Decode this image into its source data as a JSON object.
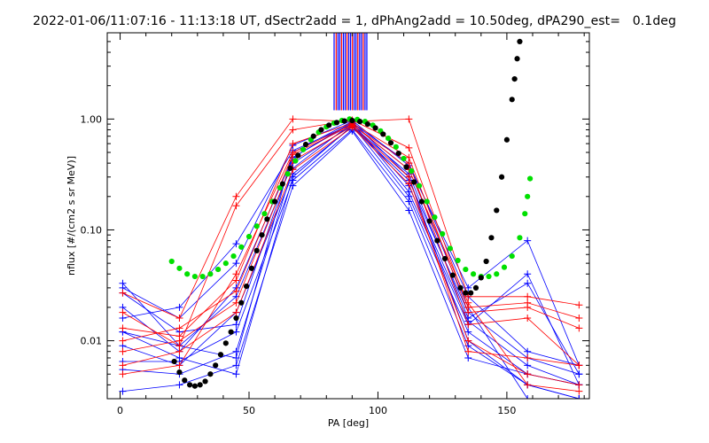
{
  "chart_data": {
    "type": "line",
    "title": "2022-01-06/11:07:16 - 11:13:18 UT, dSectr2add = 1, dPhAng2add = 10.50deg, dPA290_est=   0.1deg",
    "xlabel": "PA [deg]",
    "ylabel": "nflux [#/(cm2 s sr MeV)]",
    "xlim": [
      -5,
      182
    ],
    "ylim": [
      0.003,
      6.0
    ],
    "yscale": "log",
    "x_ticks": [
      {
        "value": 0,
        "label": "0"
      },
      {
        "value": 50,
        "label": "50"
      },
      {
        "value": 100,
        "label": "100"
      },
      {
        "value": 150,
        "label": "150"
      }
    ],
    "y_ticks": [
      {
        "value": 0.01,
        "label": "0.01"
      },
      {
        "value": 0.1,
        "label": "0.10"
      },
      {
        "value": 1.0,
        "label": "1.00"
      }
    ],
    "marker_pa": [
      1,
      23,
      45,
      67,
      90,
      112,
      135,
      158,
      178
    ],
    "series": [
      {
        "color": "#0000ff",
        "values": [
          0.033,
          0.009,
          0.007,
          0.5,
          0.95,
          0.3,
          0.01,
          0.004,
          0.003
        ]
      },
      {
        "color": "#0000ff",
        "values": [
          0.027,
          0.012,
          0.014,
          0.45,
          0.92,
          0.25,
          0.015,
          0.006,
          0.004
        ]
      },
      {
        "color": "#0000ff",
        "values": [
          0.016,
          0.02,
          0.075,
          0.52,
          0.9,
          0.35,
          0.02,
          0.003,
          0.003
        ]
      },
      {
        "color": "#0000ff",
        "values": [
          0.012,
          0.009,
          0.025,
          0.4,
          0.88,
          0.2,
          0.012,
          0.005,
          0.004
        ]
      },
      {
        "color": "#0000ff",
        "values": [
          0.009,
          0.006,
          0.018,
          0.32,
          0.85,
          0.28,
          0.018,
          0.007,
          0.005
        ]
      },
      {
        "color": "#0000ff",
        "values": [
          0.0065,
          0.0065,
          0.012,
          0.28,
          0.8,
          0.18,
          0.009,
          0.004,
          0.003
        ]
      },
      {
        "color": "#0000ff",
        "values": [
          0.0055,
          0.005,
          0.008,
          0.36,
          0.92,
          0.4,
          0.025,
          0.008,
          0.006
        ]
      },
      {
        "color": "#0000ff",
        "values": [
          0.0035,
          0.004,
          0.006,
          0.25,
          0.78,
          0.15,
          0.007,
          0.005,
          0.004
        ]
      },
      {
        "color": "#0000ff",
        "values": [
          0.03,
          0.016,
          0.05,
          0.58,
          0.97,
          0.38,
          0.03,
          0.08,
          0.006
        ]
      },
      {
        "color": "#0000ff",
        "values": [
          0.02,
          0.008,
          0.03,
          0.45,
          0.94,
          0.22,
          0.014,
          0.04,
          0.004
        ]
      },
      {
        "color": "#0000ff",
        "values": [
          0.012,
          0.007,
          0.005,
          0.3,
          0.87,
          0.32,
          0.016,
          0.033,
          0.005
        ]
      },
      {
        "color": "#ff0000",
        "values": [
          0.027,
          0.016,
          0.2,
          1.0,
          0.95,
          1.0,
          0.025,
          0.025,
          0.021
        ]
      },
      {
        "color": "#ff0000",
        "values": [
          0.018,
          0.009,
          0.165,
          0.8,
          0.98,
          0.55,
          0.02,
          0.022,
          0.016
        ]
      },
      {
        "color": "#ff0000",
        "values": [
          0.013,
          0.011,
          0.035,
          0.6,
          0.92,
          0.45,
          0.018,
          0.02,
          0.013
        ]
      },
      {
        "color": "#ff0000",
        "values": [
          0.01,
          0.013,
          0.028,
          0.48,
          0.88,
          0.4,
          0.014,
          0.016,
          0.006
        ]
      },
      {
        "color": "#ff0000",
        "values": [
          0.008,
          0.01,
          0.022,
          0.42,
          0.86,
          0.3,
          0.008,
          0.007,
          0.006
        ]
      },
      {
        "color": "#ff0000",
        "values": [
          0.006,
          0.008,
          0.018,
          0.35,
          0.84,
          0.26,
          0.01,
          0.005,
          0.004
        ]
      },
      {
        "color": "#ff0000",
        "values": [
          0.005,
          0.006,
          0.04,
          0.5,
          0.9,
          0.35,
          0.022,
          0.004,
          0.0035
        ]
      }
    ],
    "fits": [
      {
        "color": "#00e000",
        "points": [
          [
            20,
            0.052
          ],
          [
            23,
            0.045
          ],
          [
            26,
            0.04
          ],
          [
            29,
            0.038
          ],
          [
            32,
            0.038
          ],
          [
            35,
            0.04
          ],
          [
            38,
            0.044
          ],
          [
            41,
            0.05
          ],
          [
            44,
            0.058
          ],
          [
            47,
            0.07
          ],
          [
            50,
            0.087
          ],
          [
            53,
            0.108
          ],
          [
            56,
            0.14
          ],
          [
            59,
            0.18
          ],
          [
            62,
            0.24
          ],
          [
            65,
            0.32
          ],
          [
            68,
            0.42
          ],
          [
            71,
            0.53
          ],
          [
            74,
            0.65
          ],
          [
            77,
            0.76
          ],
          [
            80,
            0.85
          ],
          [
            83,
            0.92
          ],
          [
            86,
            0.97
          ],
          [
            89,
            1.0
          ],
          [
            92,
            0.99
          ],
          [
            95,
            0.95
          ],
          [
            98,
            0.88
          ],
          [
            101,
            0.78
          ],
          [
            104,
            0.67
          ],
          [
            107,
            0.56
          ],
          [
            110,
            0.44
          ],
          [
            113,
            0.34
          ],
          [
            116,
            0.25
          ],
          [
            119,
            0.18
          ],
          [
            122,
            0.13
          ],
          [
            125,
            0.092
          ],
          [
            128,
            0.068
          ],
          [
            131,
            0.053
          ],
          [
            134,
            0.044
          ],
          [
            137,
            0.04
          ],
          [
            140,
            0.038
          ],
          [
            143,
            0.038
          ],
          [
            146,
            0.04
          ],
          [
            149,
            0.046
          ],
          [
            152,
            0.058
          ],
          [
            155,
            0.085
          ],
          [
            157,
            0.14
          ],
          [
            158,
            0.2
          ],
          [
            159,
            0.29
          ]
        ]
      },
      {
        "color": "#000000",
        "points": [
          [
            21,
            0.0065
          ],
          [
            23,
            0.0052
          ],
          [
            25,
            0.0044
          ],
          [
            27,
            0.004
          ],
          [
            29,
            0.0039
          ],
          [
            31,
            0.004
          ],
          [
            33,
            0.0043
          ],
          [
            35,
            0.005
          ],
          [
            37,
            0.006
          ],
          [
            39,
            0.0075
          ],
          [
            41,
            0.0095
          ],
          [
            43,
            0.012
          ],
          [
            45,
            0.016
          ],
          [
            47,
            0.022
          ],
          [
            49,
            0.031
          ],
          [
            51,
            0.045
          ],
          [
            53,
            0.065
          ],
          [
            55,
            0.09
          ],
          [
            57,
            0.125
          ],
          [
            60,
            0.18
          ],
          [
            63,
            0.26
          ],
          [
            66,
            0.36
          ],
          [
            69,
            0.47
          ],
          [
            72,
            0.59
          ],
          [
            75,
            0.7
          ],
          [
            78,
            0.8
          ],
          [
            81,
            0.88
          ],
          [
            84,
            0.93
          ],
          [
            87,
            0.96
          ],
          [
            90,
            0.97
          ],
          [
            93,
            0.95
          ],
          [
            96,
            0.9
          ],
          [
            99,
            0.83
          ],
          [
            102,
            0.73
          ],
          [
            105,
            0.61
          ],
          [
            108,
            0.49
          ],
          [
            111,
            0.37
          ],
          [
            114,
            0.27
          ],
          [
            117,
            0.18
          ],
          [
            120,
            0.12
          ],
          [
            123,
            0.08
          ],
          [
            126,
            0.055
          ],
          [
            129,
            0.039
          ],
          [
            132,
            0.03
          ],
          [
            134,
            0.027
          ],
          [
            136,
            0.027
          ],
          [
            138,
            0.03
          ],
          [
            140,
            0.037
          ],
          [
            142,
            0.052
          ],
          [
            144,
            0.085
          ],
          [
            146,
            0.15
          ],
          [
            148,
            0.3
          ],
          [
            150,
            0.65
          ],
          [
            152,
            1.5
          ],
          [
            153,
            2.3
          ],
          [
            154,
            3.5
          ],
          [
            155,
            5.0
          ]
        ]
      }
    ],
    "vertical_lines": {
      "y_from": 1.2,
      "y_to": 6.0,
      "lines": [
        {
          "x": 83.0,
          "color": "#0000ff"
        },
        {
          "x": 83.8,
          "color": "#ff0000"
        },
        {
          "x": 84.5,
          "color": "#0000ff"
        },
        {
          "x": 85.2,
          "color": "#0000ff"
        },
        {
          "x": 85.9,
          "color": "#ff0000"
        },
        {
          "x": 86.6,
          "color": "#0000ff"
        },
        {
          "x": 87.3,
          "color": "#0000ff"
        },
        {
          "x": 88.0,
          "color": "#ff0000"
        },
        {
          "x": 88.7,
          "color": "#0000ff"
        },
        {
          "x": 89.4,
          "color": "#0000ff"
        },
        {
          "x": 90.1,
          "color": "#ff0000"
        },
        {
          "x": 90.8,
          "color": "#0000ff"
        },
        {
          "x": 91.5,
          "color": "#0000ff"
        },
        {
          "x": 92.2,
          "color": "#ff0000"
        },
        {
          "x": 92.9,
          "color": "#0000ff"
        },
        {
          "x": 93.6,
          "color": "#0000ff"
        },
        {
          "x": 94.3,
          "color": "#ff0000"
        },
        {
          "x": 95.0,
          "color": "#0000ff"
        },
        {
          "x": 95.7,
          "color": "#0000ff"
        }
      ]
    }
  }
}
